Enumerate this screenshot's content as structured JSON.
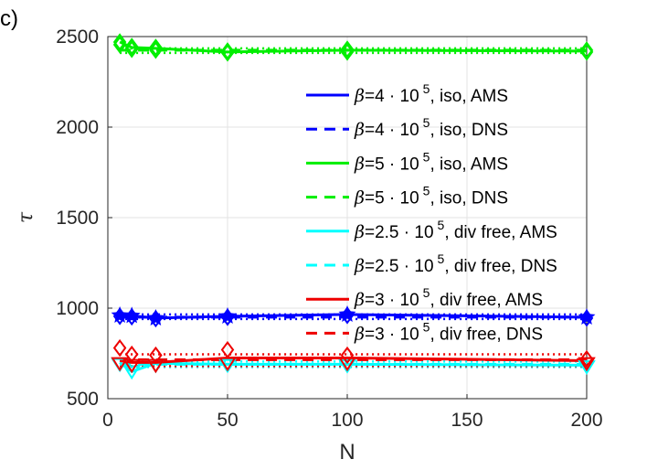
{
  "panel_label": "c)",
  "chart_data": {
    "type": "line",
    "title": "",
    "xlabel": "N",
    "ylabel": "τ",
    "xlim": [
      0,
      200
    ],
    "ylim": [
      500,
      2500
    ],
    "xticks": [
      0,
      50,
      100,
      150,
      200
    ],
    "yticks": [
      500,
      1000,
      1500,
      2000,
      2500
    ],
    "grid": true,
    "legend_position": "top-right",
    "series": [
      {
        "beta_symbol": "β",
        "beta_value": "=4 · 10",
        "exponent": "5",
        "suffix": ", iso, AMS",
        "color": "#0000ff",
        "dash": "solid",
        "marker": "star",
        "x": [
          5,
          10,
          20,
          50,
          100,
          200
        ],
        "y": [
          960,
          958,
          945,
          955,
          965,
          950
        ]
      },
      {
        "beta_symbol": "β",
        "beta_value": "=4 · 10",
        "exponent": "5",
        "suffix": ", iso, DNS",
        "color": "#0000ff",
        "dash": "dashed",
        "marker": "none",
        "x": [
          5,
          200
        ],
        "y": [
          950,
          950
        ]
      },
      {
        "beta_symbol": "β",
        "beta_value": "=5 · 10",
        "exponent": "5",
        "suffix": ", iso, AMS",
        "color": "#00ee00",
        "dash": "solid",
        "marker": "diamond",
        "x": [
          5,
          10,
          20,
          50,
          100,
          200
        ],
        "y": [
          2470,
          2440,
          2435,
          2415,
          2425,
          2420
        ]
      },
      {
        "beta_symbol": "β",
        "beta_value": "=5 · 10",
        "exponent": "5",
        "suffix": ", iso, DNS",
        "color": "#00ee00",
        "dash": "dashed",
        "marker": "none",
        "x": [
          5,
          200
        ],
        "y": [
          2425,
          2425
        ]
      },
      {
        "beta_symbol": "β",
        "beta_value": "=2.5  · 10",
        "exponent": "5",
        "suffix": ", div free, AMS",
        "color": "#00ffff",
        "dash": "solid",
        "marker": "none",
        "x": [
          5,
          10,
          20,
          50,
          100,
          200
        ],
        "y": [
          700,
          650,
          695,
          690,
          690,
          685
        ]
      },
      {
        "beta_symbol": "β",
        "beta_value": "=2.5  · 10",
        "exponent": "5",
        "suffix": ", div free, DNS",
        "color": "#00ffff",
        "dash": "dashed",
        "marker": "none",
        "x": [
          5,
          200
        ],
        "y": [
          690,
          690
        ]
      },
      {
        "beta_symbol": "β",
        "beta_value": "=3 · 10",
        "exponent": "5",
        "suffix": ", div free, AMS",
        "color": "#ee0000",
        "dash": "solid",
        "marker": "triangle",
        "x": [
          5,
          10,
          20,
          50,
          100,
          200
        ],
        "y": [
          710,
          700,
          700,
          725,
          725,
          710
        ]
      },
      {
        "beta_symbol": "β",
        "beta_value": "=3 · 10",
        "exponent": "5",
        "suffix": ", div free, DNS",
        "color": "#ee0000",
        "dash": "dashed",
        "marker": "none",
        "x": [
          5,
          200
        ],
        "y": [
          715,
          715
        ]
      }
    ],
    "reference_lines": [
      {
        "color": "#0000ff",
        "dash": "dotted",
        "y": [
          940,
          965
        ]
      },
      {
        "color": "#00ee00",
        "dash": "dotted",
        "y": [
          2410,
          2435
        ]
      },
      {
        "color": "#00ffff",
        "dash": "dotted",
        "y": [
          675,
          705
        ]
      },
      {
        "color": "#ee0000",
        "dash": "dotted",
        "y": [
          680,
          745
        ]
      }
    ],
    "markers": [
      {
        "series": 2,
        "shape": "diamond",
        "color": "#00ee00",
        "points": [
          [
            5,
            2470
          ],
          [
            5,
            2455
          ],
          [
            10,
            2445
          ],
          [
            10,
            2430
          ],
          [
            20,
            2440
          ],
          [
            20,
            2425
          ],
          [
            50,
            2420
          ],
          [
            50,
            2410
          ],
          [
            100,
            2430
          ],
          [
            100,
            2415
          ],
          [
            200,
            2425
          ],
          [
            200,
            2415
          ]
        ]
      },
      {
        "series": 0,
        "shape": "star",
        "color": "#0000ff",
        "points": [
          [
            5,
            960
          ],
          [
            10,
            958
          ],
          [
            20,
            945
          ],
          [
            50,
            955
          ],
          [
            100,
            965
          ],
          [
            200,
            950
          ]
        ]
      },
      {
        "series": 0,
        "shape": "diamond",
        "color": "#0000ff",
        "points": [
          [
            5,
            955
          ],
          [
            10,
            952
          ],
          [
            20,
            942
          ],
          [
            50,
            950
          ],
          [
            100,
            960
          ],
          [
            200,
            945
          ]
        ]
      },
      {
        "series": 4,
        "shape": "triangle-down",
        "color": "#00ffff",
        "points": [
          [
            5,
            695
          ],
          [
            10,
            655
          ],
          [
            20,
            690
          ],
          [
            50,
            690
          ],
          [
            100,
            688
          ],
          [
            200,
            682
          ]
        ]
      },
      {
        "series": 6,
        "shape": "diamond",
        "color": "#ee0000",
        "points": [
          [
            5,
            780
          ],
          [
            10,
            745
          ],
          [
            20,
            740
          ],
          [
            50,
            770
          ],
          [
            100,
            740
          ],
          [
            200,
            720
          ]
        ]
      },
      {
        "series": 6,
        "shape": "triangle-down",
        "color": "#ee0000",
        "points": [
          [
            5,
            700
          ],
          [
            10,
            690
          ],
          [
            20,
            690
          ],
          [
            50,
            700
          ],
          [
            100,
            700
          ],
          [
            200,
            700
          ]
        ]
      }
    ]
  }
}
